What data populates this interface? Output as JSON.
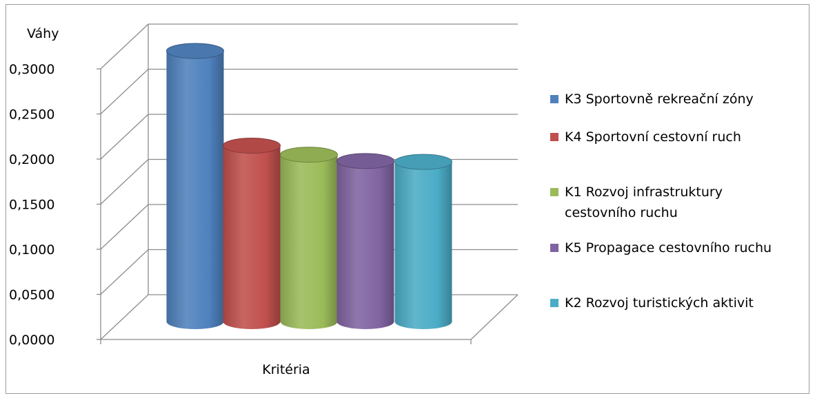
{
  "chart_data": {
    "type": "bar",
    "title": "",
    "ylabel": "Váhy",
    "xlabel": "Kritéria",
    "ylim": [
      0,
      0.3
    ],
    "y_ticks": [
      "0,0000",
      "0,0500",
      "0,1000",
      "0,1500",
      "0,2000",
      "0,2500",
      "0,3000"
    ],
    "grid": true,
    "legend_position": "right",
    "series": [
      {
        "name": "K3 Sportovně rekreační zóny",
        "values": [
          0.3
        ],
        "color": "#4F81BD"
      },
      {
        "name": "K4 Sportovní cestovní ruch",
        "values": [
          0.195
        ],
        "color": "#C0504D"
      },
      {
        "name": "K1 Rozvoj infrastruktury cestovního ruchu",
        "legend_lines": [
          "K1 Rozvoj infrastruktury",
          "cestovního ruchu"
        ],
        "values": [
          0.185
        ],
        "color": "#9BBB59"
      },
      {
        "name": "K5 Propagace cestovního ruchu",
        "values": [
          0.178
        ],
        "color": "#8064A2"
      },
      {
        "name": "K2 Rozvoj turistických aktivit",
        "values": [
          0.177
        ],
        "color": "#4BACC6"
      }
    ]
  }
}
